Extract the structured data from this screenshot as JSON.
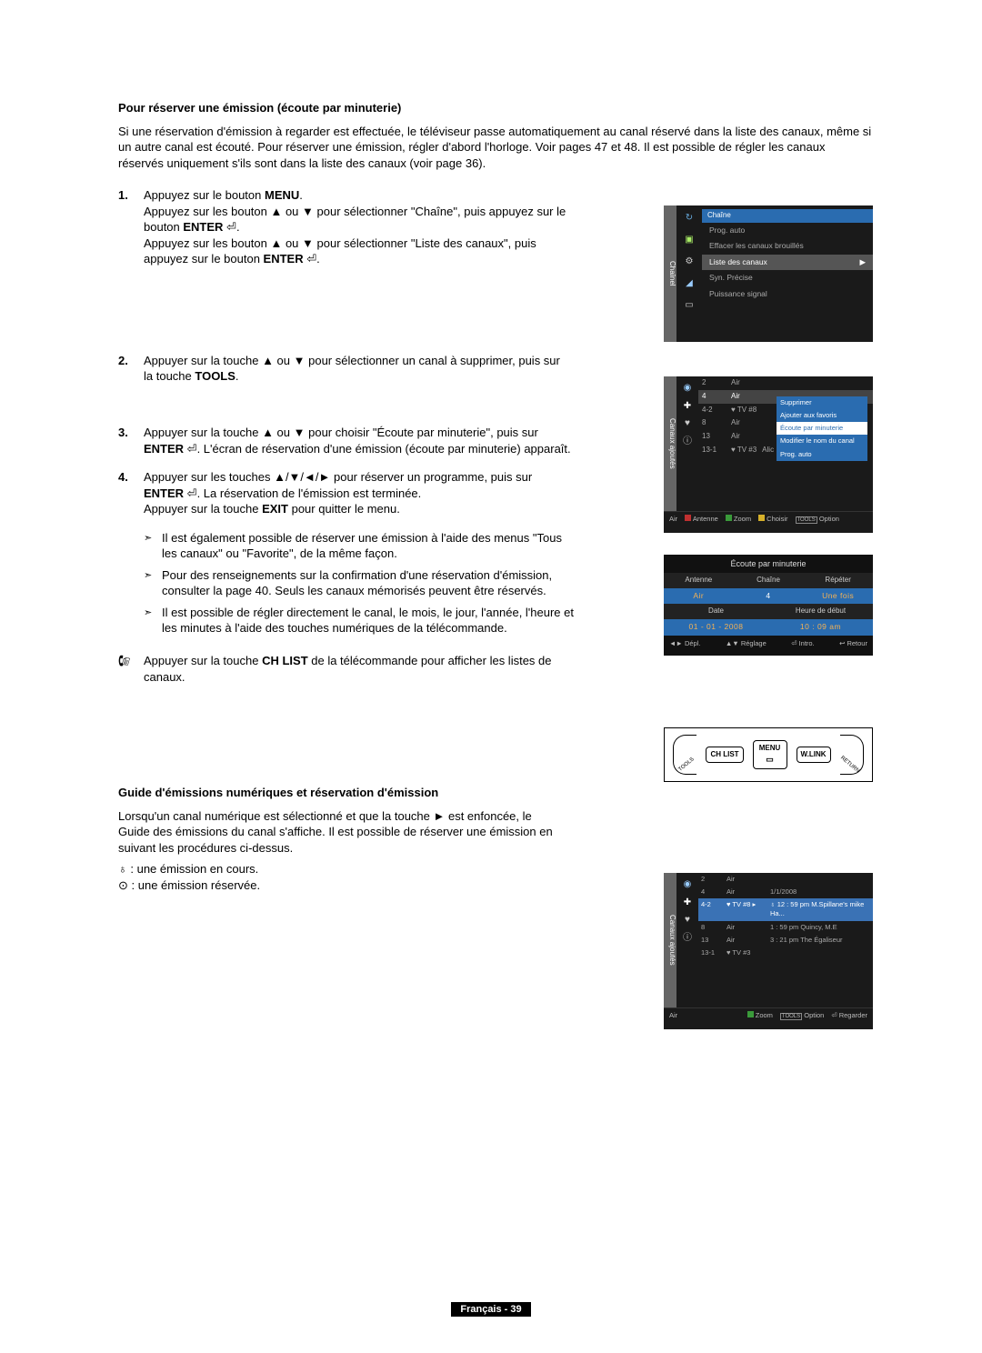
{
  "section1": {
    "title": "Pour réserver une émission (écoute par minuterie)",
    "intro": "Si une réservation d'émission à regarder est effectuée, le téléviseur passe automatiquement au canal réservé dans la liste des canaux, même si un autre canal est écouté. Pour réserver une émission, régler d'abord l'horloge. Voir pages 47 et 48. Il est possible de régler les canaux réservés uniquement s'ils sont dans la liste des canaux (voir page 36)."
  },
  "steps": {
    "s1": {
      "num": "1.",
      "l1a": "Appuyez sur le bouton ",
      "l1b": "MENU",
      "l1c": ".",
      "l2": "Appuyez sur les bouton ▲ ou ▼ pour sélectionner \"Chaîne\", puis appuyez sur le bouton ",
      "l2b": "ENTER",
      "l2c": " ⏎.",
      "l3": "Appuyez sur les bouton ▲ ou ▼ pour sélectionner \"Liste des canaux\", puis appuyez sur le bouton ",
      "l3b": "ENTER",
      "l3c": " ⏎."
    },
    "s2": {
      "num": "2.",
      "t": "Appuyer sur la touche ▲ ou ▼ pour sélectionner un canal à supprimer, puis sur la touche ",
      "b": "TOOLS",
      "c": "."
    },
    "s3": {
      "num": "3.",
      "t1": "Appuyer sur la touche ▲ ou ▼ pour choisir \"Écoute par minuterie\", puis sur ",
      "t1b": "ENTER",
      "t1c": " ⏎. L'écran de réservation d'une émission (écoute par minuterie) apparaît."
    },
    "s4": {
      "num": "4.",
      "t1": "Appuyer sur les touches ▲/▼/◄/► pour réserver un programme, puis sur ",
      "t1b": "ENTER",
      "t1c": " ⏎. La réservation de l'émission est terminée.",
      "t2a": "Appuyer sur la touche ",
      "t2b": "EXIT",
      "t2c": " pour quitter le menu."
    }
  },
  "arrows": {
    "a1": "Il est également possible de réserver une émission à l'aide des menus \"Tous les canaux\" ou \"Favorite\", de la même façon.",
    "a2": "Pour des renseignements sur la confirmation d'une réservation d'émission, consulter la page 40. Seuls les canaux mémorisés peuvent être réservés.",
    "a3": "Il est possible de régler directement le canal, le mois, le jour, l'année, l'heure et les minutes à l'aide des touches numériques de la télécommande."
  },
  "note": {
    "t1": "Appuyer sur la touche ",
    "b": "CH LIST",
    "t2": " de la télécommande pour afficher les listes de canaux."
  },
  "section2": {
    "title": "Guide d'émissions numériques et réservation d'émission",
    "p1": "Lorsqu'un canal numérique est sélectionné et que la touche ► est enfoncée, le Guide des émissions du canal s'affiche. Il est possible de réserver une émission en suivant les procédures ci-dessus.",
    "l1": "♁ : une émission en cours.",
    "l2": "⊙ : une émission réservée."
  },
  "panel1": {
    "side": "Chaînel",
    "header": "Chaîne",
    "rows": [
      "Prog. auto",
      "Effacer les canaux brouillés",
      "Liste des canaux",
      "Syn. Précise",
      "Puissance signal"
    ],
    "hi_index": 2
  },
  "panel2": {
    "side": "Canaux ajoutés",
    "rows": [
      {
        "c1": "2",
        "c2": "Air"
      },
      {
        "c1": "4",
        "c2": "Air"
      },
      {
        "c1": "4-2",
        "c2": "♥ TV #8"
      },
      {
        "c1": "8",
        "c2": "Air"
      },
      {
        "c1": "13",
        "c2": "Air"
      },
      {
        "c1": "13-1",
        "c2": "♥ TV #3",
        "c3": "Alic"
      }
    ],
    "hi_index": 1,
    "popup": [
      "Supprimer",
      "Ajouter aux favoris",
      "Écoute par minuterie",
      "Modifier le nom du canal",
      "Prog. auto"
    ],
    "popup_hi": 2,
    "foot": {
      "f1": "Air",
      "ant": "Antenne",
      "zoom": "Zoom",
      "choisir": "Choisir",
      "opt": "Option",
      "tools": "TOOLS"
    }
  },
  "panel3": {
    "title": "Écoute par minuterie",
    "h1": "Antenne",
    "h2": "Chaîne",
    "h3": "Répéter",
    "v1": "Air",
    "v2": "4",
    "v3": "Une fois",
    "h4": "Date",
    "h5": "Heure de début",
    "v4": "01 - 01 - 2008",
    "v5": "10 : 09 am",
    "foot": {
      "depl": "Dépl.",
      "reg": "Réglage",
      "intro": "Intro.",
      "ret": "Retour"
    }
  },
  "remote": {
    "b1": "CH LIST",
    "b2": "MENU",
    "b3": "W.LINK",
    "tools": "TOOLS",
    "return": "RETURN"
  },
  "panel4": {
    "side": "Canaux ajoutés",
    "rows": [
      {
        "c1": "2",
        "c2": "Air",
        "c3": ""
      },
      {
        "c1": "4",
        "c2": "Air",
        "c3": "1/1/2008"
      },
      {
        "c1": "4-2",
        "c2": "♥ TV #8 ▸",
        "c3": "♁ 12 : 59 pm M.Spillane's mike Ha..."
      },
      {
        "c1": "8",
        "c2": "Air",
        "c3": "1 : 59 pm   Quincy, M.E"
      },
      {
        "c1": "13",
        "c2": "Air",
        "c3": "3 : 21 pm   The Égaliseur"
      },
      {
        "c1": "13-1",
        "c2": "♥ TV #3",
        "c3": ""
      }
    ],
    "hi_index": 2,
    "foot": {
      "f1": "Air",
      "zoom": "Zoom",
      "opt": "Option",
      "reg": "Regarder",
      "tools": "TOOLS"
    }
  },
  "footer": "Français - 39",
  "colors": {
    "red": "#c03030",
    "green": "#3a9a3a",
    "yellow": "#d5b02a",
    "blue": "#2a6cb0"
  }
}
